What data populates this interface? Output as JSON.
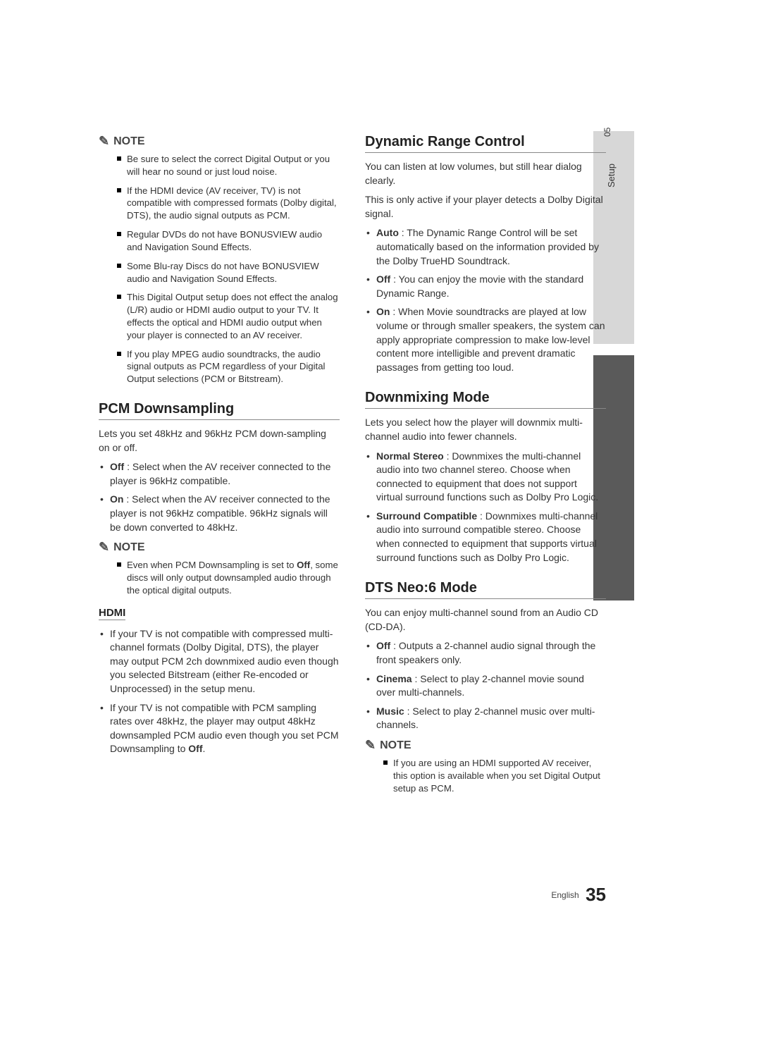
{
  "sidebar": {
    "chapter": "05",
    "label": "Setup"
  },
  "footer": {
    "lang": "English",
    "page": "35"
  },
  "left": {
    "note1": {
      "label": "NOTE",
      "items": [
        "Be sure to select the correct Digital Output or you will hear no sound or just loud noise.",
        "If the HDMI device (AV receiver, TV) is not compatible with compressed formats (Dolby digital, DTS), the audio signal outputs as PCM.",
        "Regular DVDs do not have BONUSVIEW audio and Navigation Sound Effects.",
        "Some Blu-ray Discs do not have BONUSVIEW audio and Navigation Sound Effects.",
        "This Digital Output setup does not effect the analog (L/R) audio or HDMI audio output to your TV. It effects the optical and HDMI audio output when your player is connected to an AV receiver.",
        "If you play MPEG audio soundtracks, the audio signal outputs as PCM regardless of your Digital Output selections (PCM or Bitstream)."
      ]
    },
    "pcm": {
      "title": "PCM Downsampling",
      "intro": "Lets you set 48kHz and 96kHz PCM down-sampling on or off.",
      "items": {
        "off_label": "Off",
        "off_text": " : Select when the AV receiver connected to the player is 96kHz compatible.",
        "on_label": "On",
        "on_text": " : Select when the AV receiver connected to the player is not 96kHz compatible. 96kHz signals will be down converted to 48kHz."
      }
    },
    "note2": {
      "label": "NOTE",
      "item_pre": "Even when PCM Downsampling is set to ",
      "item_bold": "Off",
      "item_post": ", some discs will only output downsampled audio through the optical digital outputs."
    },
    "hdmi": {
      "title": "HDMI",
      "item1": "If your TV is not compatible with compressed multi-channel formats (Dolby Digital, DTS), the player may output PCM 2ch downmixed audio even though you selected Bitstream (either Re-encoded or Unprocessed) in the setup menu.",
      "item2_pre": "If your TV is not compatible with PCM sampling rates over 48kHz, the player may output 48kHz downsampled PCM audio even though you set PCM Downsampling to ",
      "item2_bold": "Off",
      "item2_post": "."
    }
  },
  "right": {
    "drc": {
      "title": "Dynamic Range Control",
      "intro1": "You can listen at low volumes, but still hear dialog clearly.",
      "intro2": "This is only active if your player detects a Dolby Digital signal.",
      "auto_label": "Auto",
      "auto_text": " : The Dynamic Range Control will be set automatically based on the information provided by the Dolby TrueHD Soundtrack.",
      "off_label": "Off",
      "off_text": " : You can enjoy the movie with the standard Dynamic Range.",
      "on_label": "On",
      "on_text": " : When Movie soundtracks are played at low volume or through smaller speakers, the system can apply appropriate compression to make low-level content more intelligible and prevent dramatic passages from getting too loud."
    },
    "downmix": {
      "title": "Downmixing Mode",
      "intro": "Lets you select how the player will downmix multi-channel audio into fewer channels.",
      "ns_label": "Normal Stereo",
      "ns_text": " : Downmixes the multi-channel audio into two channel stereo. Choose when connected to equipment that does not support virtual surround functions such as Dolby Pro Logic.",
      "sc_label": "Surround Compatible",
      "sc_text": " : Downmixes multi-channel audio into surround compatible stereo. Choose when connected to equipment that supports virtual surround functions such as Dolby Pro Logic."
    },
    "dts": {
      "title": "DTS Neo:6 Mode",
      "intro": "You can enjoy multi-channel sound from an Audio CD (CD-DA).",
      "off_label": "Off",
      "off_text": " : Outputs a 2-channel audio signal through the front speakers only.",
      "cin_label": "Cinema",
      "cin_text": " : Select to play 2-channel movie sound over multi-channels.",
      "mus_label": "Music",
      "mus_text": " : Select to play 2-channel music over multi-channels."
    },
    "note3": {
      "label": "NOTE",
      "item": "If you are using an HDMI supported AV receiver, this option is available when you set Digital Output setup as PCM."
    }
  }
}
